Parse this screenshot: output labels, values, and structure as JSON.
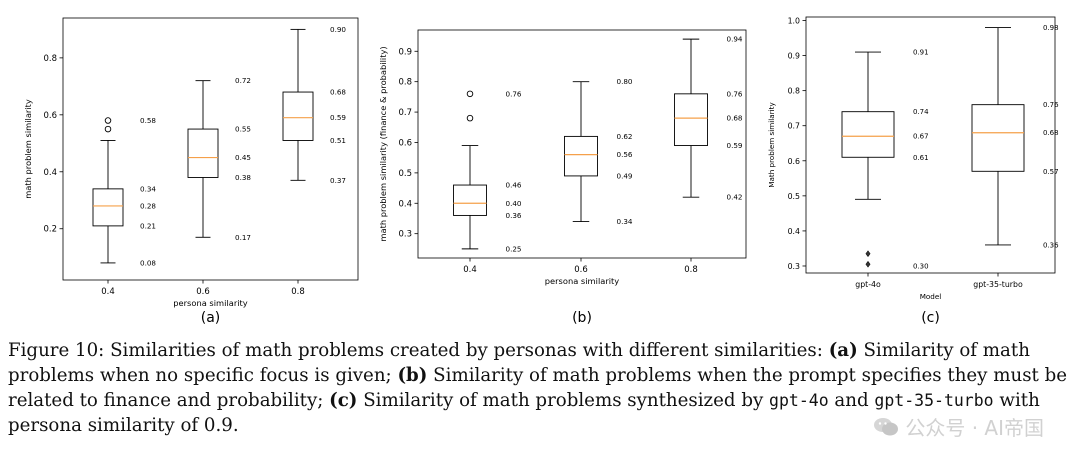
{
  "chart_data": [
    {
      "type": "boxplot",
      "panel_label": "(a)",
      "xlabel": "persona similarity",
      "ylabel": "math problem similarity",
      "categories": [
        "0.4",
        "0.6",
        "0.8"
      ],
      "ylim": [
        0.02,
        0.94
      ],
      "yticks": [
        0.2,
        0.4,
        0.6,
        0.8
      ],
      "ytick_labels": [
        "0.2",
        "0.4",
        "0.6",
        "0.8"
      ],
      "boxes": [
        {
          "min": 0.08,
          "q1": 0.21,
          "median": 0.28,
          "q3": 0.34,
          "max": 0.51,
          "outliers": [
            0.55,
            0.58
          ],
          "labels": [
            "0.58",
            "0.34",
            "0.28",
            "0.21",
            "0.08"
          ],
          "label_values": [
            0.58,
            0.34,
            0.28,
            0.21,
            0.08
          ]
        },
        {
          "min": 0.17,
          "q1": 0.38,
          "median": 0.45,
          "q3": 0.55,
          "max": 0.72,
          "outliers": [],
          "labels": [
            "0.72",
            "0.55",
            "0.45",
            "0.38",
            "0.17"
          ],
          "label_values": [
            0.72,
            0.55,
            0.45,
            0.38,
            0.17
          ]
        },
        {
          "min": 0.37,
          "q1": 0.51,
          "median": 0.59,
          "q3": 0.68,
          "max": 0.9,
          "outliers": [],
          "labels": [
            "0.90",
            "0.68",
            "0.59",
            "0.51",
            "0.37"
          ],
          "label_values": [
            0.9,
            0.68,
            0.59,
            0.51,
            0.37
          ]
        }
      ],
      "grid": false
    },
    {
      "type": "boxplot",
      "panel_label": "(b)",
      "xlabel": "persona similarity",
      "ylabel": "math problem similarity (finance & probability)",
      "categories": [
        "0.4",
        "0.6",
        "0.8"
      ],
      "ylim": [
        0.22,
        0.97
      ],
      "yticks": [
        0.3,
        0.4,
        0.5,
        0.6,
        0.7,
        0.8,
        0.9
      ],
      "ytick_labels": [
        "0.3",
        "0.4",
        "0.5",
        "0.6",
        "0.7",
        "0.8",
        "0.9"
      ],
      "boxes": [
        {
          "min": 0.25,
          "q1": 0.36,
          "median": 0.4,
          "q3": 0.46,
          "max": 0.59,
          "outliers": [
            0.68,
            0.76
          ],
          "labels": [
            "0.76",
            "0.46",
            "0.40",
            "0.36",
            "0.25"
          ],
          "label_values": [
            0.76,
            0.46,
            0.4,
            0.36,
            0.25
          ]
        },
        {
          "min": 0.34,
          "q1": 0.49,
          "median": 0.56,
          "q3": 0.62,
          "max": 0.8,
          "outliers": [],
          "labels": [
            "0.80",
            "0.62",
            "0.56",
            "0.49",
            "0.34"
          ],
          "label_values": [
            0.8,
            0.62,
            0.56,
            0.49,
            0.34
          ]
        },
        {
          "min": 0.42,
          "q1": 0.59,
          "median": 0.68,
          "q3": 0.76,
          "max": 0.94,
          "outliers": [],
          "labels": [
            "0.94",
            "0.76",
            "0.68",
            "0.59",
            "0.42"
          ],
          "label_values": [
            0.94,
            0.76,
            0.68,
            0.59,
            0.42
          ]
        }
      ],
      "grid": false
    },
    {
      "type": "boxplot",
      "panel_label": "(c)",
      "xlabel": "Model",
      "ylabel": "Math problem similarity",
      "categories": [
        "gpt-4o",
        "gpt-35-turbo"
      ],
      "ylim": [
        0.28,
        1.01
      ],
      "yticks": [
        0.3,
        0.4,
        0.5,
        0.6,
        0.7,
        0.8,
        0.9,
        1.0
      ],
      "ytick_labels": [
        "0.3",
        "0.4",
        "0.5",
        "0.6",
        "0.7",
        "0.8",
        "0.9",
        "1.0"
      ],
      "boxes": [
        {
          "min": 0.49,
          "q1": 0.61,
          "median": 0.67,
          "q3": 0.74,
          "max": 0.91,
          "outliers": [
            0.305,
            0.335
          ],
          "labels": [
            "0.91",
            "0.74",
            "0.67",
            "0.61",
            "0.30"
          ],
          "label_values": [
            0.91,
            0.74,
            0.67,
            0.61,
            0.3
          ]
        },
        {
          "min": 0.36,
          "q1": 0.57,
          "median": 0.68,
          "q3": 0.76,
          "max": 0.98,
          "outliers": [],
          "labels": [
            "0.98",
            "0.76",
            "0.68",
            "0.57",
            "0.36"
          ],
          "label_values": [
            0.98,
            0.76,
            0.68,
            0.57,
            0.36
          ]
        }
      ],
      "grid": false
    }
  ],
  "caption": {
    "figure_label": "Figure 10:",
    "t1": " Similarities of math problems created by personas with different similarities: ",
    "a": "(a)",
    "t2": " Similarity of math problems when no specific focus is given; ",
    "b": "(b)",
    "t3": " Similarity of math problems when the prompt specifies they must be related to finance and probability; ",
    "c": "(c)",
    "t4": " Similarity of math problems synthesized by ",
    "model1": "gpt-4o",
    "t5": " and ",
    "model2": "gpt-35-turbo",
    "t6": " with persona similarity of 0.9."
  },
  "watermark": {
    "text": "公众号 · AI帝国",
    "icon": "wechat-icon"
  },
  "colors": {
    "median": "#f5a04a",
    "box": "#000000"
  }
}
